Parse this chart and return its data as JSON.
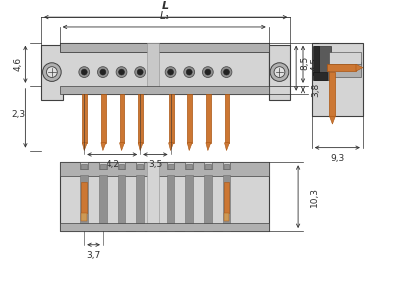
{
  "bg_color": "#ffffff",
  "gray_body": "#c0c0c0",
  "gray_light": "#d4d4d4",
  "gray_med": "#b0b0b0",
  "gray_dark": "#909090",
  "gray_darker": "#707070",
  "gray_slot": "#a8a8a8",
  "orange_pin": "#cc7733",
  "orange_dark": "#aa5511",
  "black": "#1a1a1a",
  "dim_color": "#303030",
  "line_color": "#404040",
  "dim_L": "L",
  "dim_L1": "L₁",
  "dim_46": "4,6",
  "dim_23": "2,3",
  "dim_42": "4,2",
  "dim_35": "3,5",
  "dim_38": "3,8",
  "dim_45": "4,5",
  "dim_85": "8,5",
  "dim_93": "9,3",
  "dim_103": "10,3",
  "dim_37": "3,7"
}
